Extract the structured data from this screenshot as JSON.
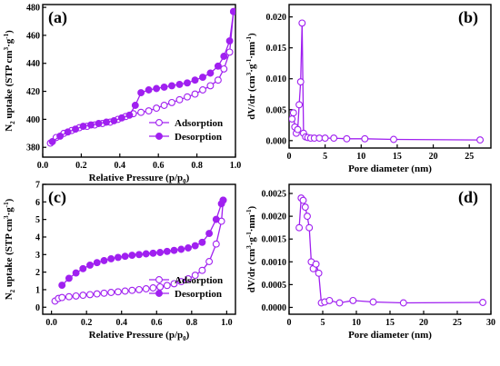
{
  "chart_data": [
    {
      "panel_label": "(a)",
      "type": "line",
      "xlabel": {
        "base": "Relative Pressure (p/p",
        "sub": "0",
        "tail": ")"
      },
      "ylabel": {
        "prefix": "N",
        "prefix_sub": "2",
        "main": " uptake (STP cm",
        "sup1": "3",
        "mid": "·g",
        "sup2": "-1",
        "tail": ")"
      },
      "xlim": [
        0.0,
        1.0
      ],
      "ylim": [
        373,
        482
      ],
      "xticks": [
        "0.0",
        "0.2",
        "0.4",
        "0.6",
        "0.8",
        "1.0"
      ],
      "yticks": [
        "380",
        "400",
        "420",
        "440",
        "460",
        "480"
      ],
      "legend_position": "bottom-right",
      "series": [
        {
          "name": "Adsorption",
          "marker": "open",
          "x": [
            0.04,
            0.07,
            0.11,
            0.15,
            0.19,
            0.23,
            0.27,
            0.31,
            0.35,
            0.39,
            0.43,
            0.47,
            0.51,
            0.55,
            0.59,
            0.63,
            0.67,
            0.71,
            0.75,
            0.79,
            0.83,
            0.87,
            0.91,
            0.94,
            0.97,
            0.99
          ],
          "y": [
            383,
            387,
            390,
            392,
            394,
            395,
            396,
            397,
            398,
            400,
            402,
            404,
            405,
            406,
            408,
            410,
            412,
            414,
            416,
            418,
            421,
            424,
            428,
            436,
            448,
            477
          ]
        },
        {
          "name": "Desorption",
          "marker": "filled",
          "x": [
            0.99,
            0.97,
            0.94,
            0.91,
            0.87,
            0.83,
            0.79,
            0.75,
            0.71,
            0.67,
            0.63,
            0.59,
            0.55,
            0.51,
            0.48,
            0.45,
            0.41,
            0.37,
            0.33,
            0.29,
            0.25,
            0.21,
            0.17,
            0.13,
            0.09,
            0.05
          ],
          "y": [
            477,
            456,
            445,
            438,
            433,
            430,
            428,
            426,
            425,
            424,
            423,
            422,
            421,
            419,
            410,
            403,
            401,
            399,
            398,
            397,
            396,
            395,
            393,
            391,
            388,
            384
          ]
        }
      ]
    },
    {
      "panel_label": "(b)",
      "type": "line",
      "xlabel": {
        "base": "Pore diameter (nm)",
        "sub": "",
        "tail": ""
      },
      "ylabel": {
        "prefix": "dV/dr (cm",
        "prefix_sub": "",
        "main": "",
        "sup1": "3",
        "mid": "·g",
        "sup2": "-1",
        "tail": "·nm",
        "sup3": "-1",
        "end": ")"
      },
      "xlim": [
        0,
        28
      ],
      "ylim": [
        -0.0012,
        0.022
      ],
      "xticks": [
        "0",
        "5",
        "10",
        "15",
        "20",
        "25"
      ],
      "yticks": [
        "0.000",
        "0.005",
        "0.010",
        "0.015",
        "0.020"
      ],
      "series": [
        {
          "name": "",
          "marker": "open",
          "x": [
            0.4,
            0.6,
            0.8,
            1.0,
            1.2,
            1.4,
            1.6,
            1.8,
            2.0,
            2.3,
            2.6,
            3.0,
            3.5,
            4.2,
            5.0,
            6.2,
            8.0,
            10.5,
            14.5,
            26.5
          ],
          "y": [
            0.0035,
            0.0045,
            0.0022,
            0.0012,
            0.0018,
            0.0058,
            0.0095,
            0.019,
            0.0012,
            0.0006,
            0.0005,
            0.0004,
            0.0004,
            0.0004,
            0.0004,
            0.0004,
            0.0003,
            0.0003,
            0.0002,
            0.0001
          ]
        }
      ]
    },
    {
      "panel_label": "(c)",
      "type": "line",
      "xlabel": {
        "base": "Relative Pressure (p/p",
        "sub": "0",
        "tail": ")"
      },
      "ylabel": {
        "prefix": "N",
        "prefix_sub": "2",
        "main": " uptake (STP cm",
        "sup1": "3",
        "mid": "·g",
        "sup2": "-1",
        "tail": ")"
      },
      "xlim": [
        -0.05,
        1.05
      ],
      "ylim": [
        -0.4,
        7.0
      ],
      "xticks": [
        "0.0",
        "0.2",
        "0.4",
        "0.6",
        "0.8",
        "1.0"
      ],
      "yticks": [
        "0",
        "1",
        "2",
        "3",
        "4",
        "5",
        "6",
        "7"
      ],
      "legend_position": "bottom-right",
      "series": [
        {
          "name": "Adsorption",
          "marker": "open",
          "x": [
            0.02,
            0.04,
            0.06,
            0.1,
            0.14,
            0.18,
            0.22,
            0.26,
            0.3,
            0.34,
            0.38,
            0.42,
            0.46,
            0.5,
            0.54,
            0.58,
            0.62,
            0.66,
            0.7,
            0.74,
            0.78,
            0.82,
            0.86,
            0.9,
            0.94,
            0.97,
            0.98
          ],
          "y": [
            0.35,
            0.5,
            0.55,
            0.6,
            0.64,
            0.68,
            0.72,
            0.76,
            0.8,
            0.84,
            0.88,
            0.92,
            0.96,
            1.0,
            1.05,
            1.1,
            1.16,
            1.24,
            1.34,
            1.46,
            1.62,
            1.82,
            2.1,
            2.6,
            3.6,
            4.9,
            6.1
          ]
        },
        {
          "name": "Desorption",
          "marker": "filled",
          "x": [
            0.98,
            0.97,
            0.94,
            0.9,
            0.86,
            0.82,
            0.78,
            0.74,
            0.7,
            0.66,
            0.62,
            0.58,
            0.54,
            0.5,
            0.46,
            0.42,
            0.38,
            0.34,
            0.3,
            0.26,
            0.22,
            0.18,
            0.14,
            0.1,
            0.06
          ],
          "y": [
            6.1,
            5.9,
            5.0,
            4.2,
            3.7,
            3.5,
            3.38,
            3.3,
            3.24,
            3.18,
            3.12,
            3.08,
            3.04,
            3.0,
            2.96,
            2.9,
            2.84,
            2.76,
            2.66,
            2.54,
            2.4,
            2.2,
            1.95,
            1.65,
            1.25
          ]
        }
      ]
    },
    {
      "panel_label": "(d)",
      "type": "line",
      "xlabel": {
        "base": "Pore diameter (nm)",
        "sub": "",
        "tail": ""
      },
      "ylabel": {
        "prefix": "dV/dr (cm",
        "prefix_sub": "",
        "main": "",
        "sup1": "3",
        "mid": "·g",
        "sup2": "-1",
        "tail": "·nm",
        "sup3": "-1",
        "end": ")"
      },
      "xlim": [
        0,
        30
      ],
      "ylim": [
        -0.00015,
        0.0027
      ],
      "xticks": [
        "0",
        "5",
        "10",
        "15",
        "20",
        "25",
        "30"
      ],
      "yticks": [
        "0.0000",
        "0.0005",
        "0.0010",
        "0.0015",
        "0.0020",
        "0.0025"
      ],
      "series": [
        {
          "name": "",
          "marker": "open",
          "x": [
            1.5,
            1.8,
            2.1,
            2.4,
            2.7,
            3.0,
            3.3,
            3.6,
            4.0,
            4.4,
            4.8,
            5.3,
            6.0,
            7.5,
            9.5,
            12.5,
            17.0,
            28.8
          ],
          "y": [
            0.00175,
            0.0024,
            0.00235,
            0.0022,
            0.002,
            0.00175,
            0.001,
            0.00085,
            0.00095,
            0.00075,
            0.0001,
            0.00012,
            0.00015,
            0.0001,
            0.00015,
            0.00012,
            0.0001,
            0.00011
          ]
        }
      ]
    }
  ],
  "colors": {
    "series": "#a020f0",
    "axis": "#000000"
  }
}
